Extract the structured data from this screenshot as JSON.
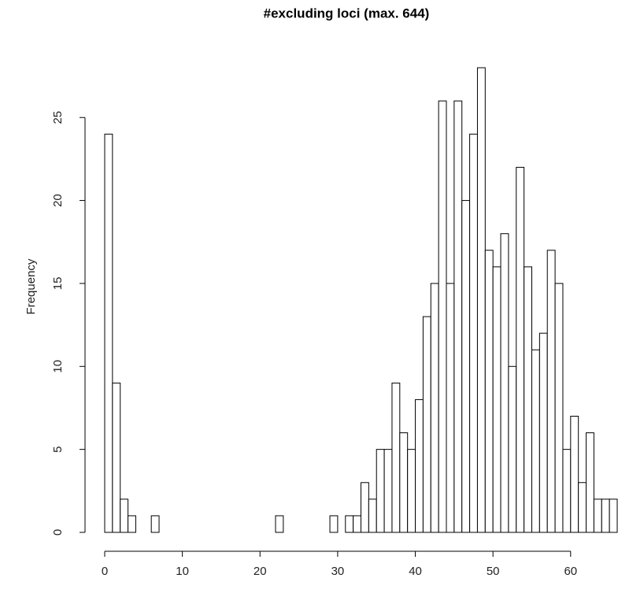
{
  "chart_data": {
    "type": "histogram",
    "title": "#excluding loci (max. 644)",
    "ylabel": "Frequency",
    "bins": [
      0,
      1,
      2,
      3,
      4,
      5,
      6,
      7,
      8,
      9,
      10,
      11,
      12,
      13,
      14,
      15,
      16,
      17,
      18,
      19,
      20,
      21,
      22,
      23,
      24,
      25,
      26,
      27,
      28,
      29,
      30,
      31,
      32,
      33,
      34,
      35,
      36,
      37,
      38,
      39,
      40,
      41,
      42,
      43,
      44,
      45,
      46,
      47,
      48,
      49,
      50,
      51,
      52,
      53,
      54,
      55,
      56,
      57,
      58,
      59,
      60,
      61,
      62,
      63,
      64,
      65,
      66
    ],
    "counts": [
      24,
      9,
      2,
      1,
      0,
      0,
      1,
      0,
      0,
      0,
      0,
      0,
      0,
      0,
      0,
      0,
      0,
      0,
      0,
      0,
      0,
      0,
      1,
      0,
      0,
      0,
      0,
      0,
      0,
      1,
      0,
      1,
      1,
      3,
      2,
      5,
      5,
      9,
      6,
      5,
      8,
      13,
      15,
      26,
      15,
      26,
      20,
      24,
      28,
      17,
      16,
      18,
      10,
      22,
      16,
      11,
      12,
      17,
      15,
      5,
      7,
      3,
      6,
      2,
      2,
      2
    ],
    "color": "#ffffff",
    "edgecolor": "#000000",
    "xlim": [
      0,
      66
    ],
    "xticks": [
      0,
      10,
      20,
      30,
      40,
      50,
      60
    ],
    "ylim": [
      0,
      28
    ],
    "yticks": [
      0,
      5,
      10,
      15,
      20,
      25
    ]
  }
}
